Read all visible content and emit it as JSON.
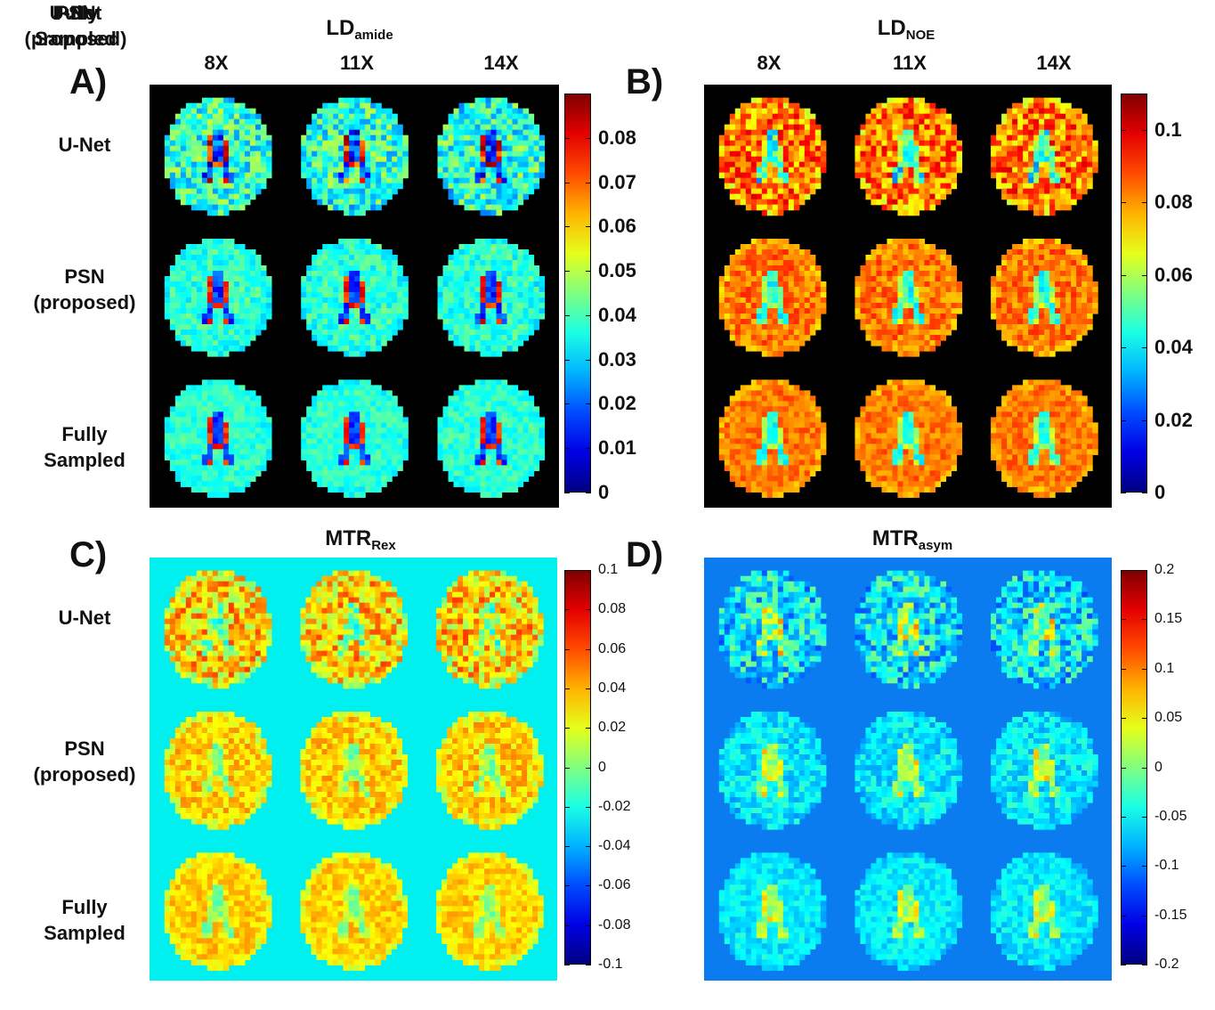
{
  "panels": [
    {
      "id": "A",
      "letter": "A)",
      "title_main": "LD",
      "title_sub": "amide",
      "columns": [
        "8X",
        "11X",
        "14X"
      ],
      "rows": [
        "U-Net",
        "PSN\n(proposed)",
        "Fully\nSampled"
      ],
      "colorbar": {
        "min": 0,
        "max": 0.09,
        "tick_labels": [
          "0.08",
          "0.07",
          "0.06",
          "0.05",
          "0.04",
          "0.03",
          "0.02",
          "0.01",
          "0"
        ],
        "tick_values": [
          0.08,
          0.07,
          0.06,
          0.05,
          0.04,
          0.03,
          0.02,
          0.01,
          0
        ]
      },
      "background_color": "#000000",
      "tissue_profile": {
        "base": 0.42,
        "rim": 0.4,
        "ventricle": 0.18,
        "ventricle_edge": 0.85
      }
    },
    {
      "id": "B",
      "letter": "B)",
      "title_main": "LD",
      "title_sub": "NOE",
      "columns": [
        "8X",
        "11X",
        "14X"
      ],
      "rows": [
        "U-Net",
        "PSN\n(proposed)",
        "Fully\nSampled"
      ],
      "colorbar": {
        "min": 0,
        "max": 0.11,
        "tick_labels": [
          "0.1",
          "0.08",
          "0.06",
          "0.04",
          "0.02",
          "0"
        ],
        "tick_values": [
          0.1,
          0.08,
          0.06,
          0.04,
          0.02,
          0
        ]
      },
      "background_color": "#000000",
      "tissue_profile": {
        "base": 0.76,
        "rim": 0.72,
        "ventricle": 0.4,
        "ventricle_edge": 0.55
      }
    },
    {
      "id": "C",
      "letter": "C)",
      "title_main": "MTR",
      "title_sub": "Rex",
      "columns": [],
      "rows": [
        "U-Net",
        "PSN\n(proposed)",
        "Fully\nSampled"
      ],
      "colorbar": {
        "min": -0.1,
        "max": 0.1,
        "tick_labels": [
          "0.1",
          "0.08",
          "0.06",
          "0.04",
          "0.02",
          "0",
          "-0.02",
          "-0.04",
          "-0.06",
          "-0.08",
          "-0.1"
        ],
        "tick_values": [
          0.1,
          0.08,
          0.06,
          0.04,
          0.02,
          0,
          -0.02,
          -0.04,
          -0.06,
          -0.08,
          -0.1
        ]
      },
      "background_color": "#00f0f0",
      "tissue_profile": {
        "base": 0.67,
        "rim": 0.62,
        "ventricle": 0.5,
        "ventricle_edge": 0.58
      }
    },
    {
      "id": "D",
      "letter": "D)",
      "title_main": "MTR",
      "title_sub": "asym",
      "columns": [],
      "rows": [],
      "colorbar": {
        "min": -0.2,
        "max": 0.2,
        "tick_labels": [
          "0.2",
          "0.15",
          "0.1",
          "0.05",
          "0",
          "-0.05",
          "-0.1",
          "-0.15",
          "-0.2"
        ],
        "tick_values": [
          0.2,
          0.15,
          0.1,
          0.05,
          0,
          -0.05,
          -0.1,
          -0.15,
          -0.2
        ]
      },
      "background_color": "#0a7cf0",
      "tissue_profile": {
        "base": 0.36,
        "rim": 0.34,
        "ventricle": 0.52,
        "ventricle_edge": 0.62
      }
    }
  ],
  "colormap": "jet"
}
